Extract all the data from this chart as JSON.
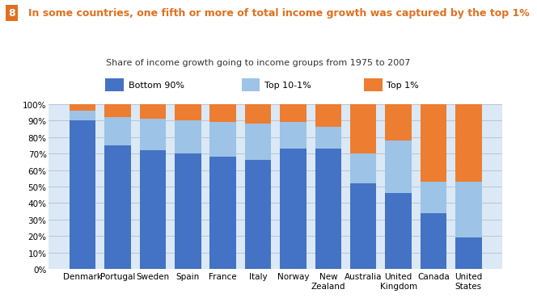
{
  "title": "In some countries, one fifth or more of total income growth was captured by the top 1%",
  "subtitle": "Share of income growth going to income groups from 1975 to 2007",
  "title_prefix": "8",
  "categories": [
    "Denmark",
    "Portugal",
    "Sweden",
    "Spain",
    "France",
    "Italy",
    "Norway",
    "New\nZealand",
    "Australia",
    "United\nKingdom",
    "Canada",
    "United\nStates"
  ],
  "bottom90": [
    90,
    75,
    72,
    70,
    68,
    66,
    73,
    73,
    52,
    46,
    34,
    19
  ],
  "top10_1": [
    6,
    17,
    19,
    20,
    21,
    22,
    16,
    13,
    18,
    32,
    19,
    34
  ],
  "top1": [
    4,
    8,
    9,
    10,
    11,
    12,
    11,
    14,
    30,
    22,
    47,
    47
  ],
  "color_bottom90": "#4472C4",
  "color_top10_1": "#9DC3E6",
  "color_top1": "#ED7D31",
  "color_title": "#E07020",
  "color_legend_bg": "#DAE9F5",
  "color_plot_bg": "#DAE9F5",
  "color_outer_bg": "#FFFFFF",
  "color_grid": "#BBBBCC",
  "ylim": [
    0,
    100
  ],
  "ytick_labels": [
    "0%",
    "10%",
    "20%",
    "30%",
    "40%",
    "50%",
    "60%",
    "70%",
    "80%",
    "90%",
    "100%"
  ]
}
